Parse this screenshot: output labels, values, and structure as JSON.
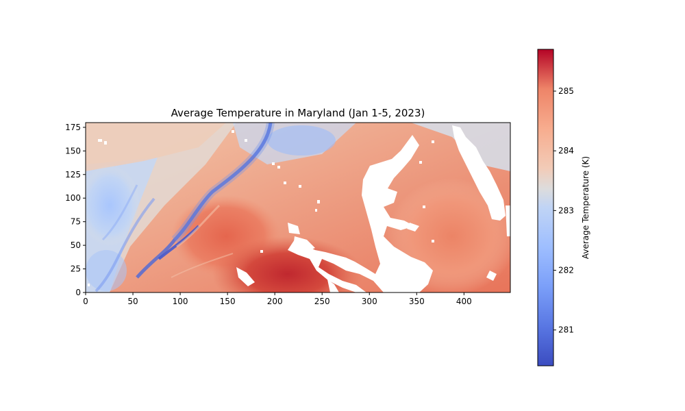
{
  "chart_data": {
    "type": "heatmap",
    "title": "Average Temperature in Maryland (Jan 1-5, 2023)",
    "xlabel": "",
    "ylabel": "",
    "xlim": [
      0,
      449
    ],
    "ylim": [
      0,
      180
    ],
    "x_ticks": [
      0,
      50,
      100,
      150,
      200,
      250,
      300,
      350,
      400
    ],
    "y_ticks": [
      0,
      25,
      50,
      75,
      100,
      125,
      150,
      175
    ],
    "colormap": "coolwarm",
    "colorbar": {
      "label": "Average Temperature (K)",
      "range": [
        280.4,
        285.7
      ],
      "ticks": [
        281,
        282,
        283,
        284,
        285
      ]
    },
    "colors": {
      "cold": "#3b4cc0",
      "neutral": "#dddddd",
      "warm": "#b40426",
      "missing": "#ffffff"
    },
    "regions": {
      "west_mountains": "280.8-282.8 K",
      "northwest": "283.2-283.8 K",
      "central": "284.5-285.3 K",
      "southeast_inland": "285.2-285.7 K",
      "eastern_shore": "284.3-284.8 K",
      "chesapeake_bay": "no data"
    }
  }
}
